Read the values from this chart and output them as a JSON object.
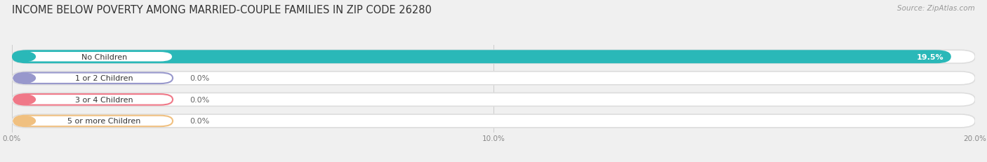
{
  "title": "INCOME BELOW POVERTY AMONG MARRIED-COUPLE FAMILIES IN ZIP CODE 26280",
  "source": "Source: ZipAtlas.com",
  "categories": [
    "No Children",
    "1 or 2 Children",
    "3 or 4 Children",
    "5 or more Children"
  ],
  "values": [
    19.5,
    0.0,
    0.0,
    0.0
  ],
  "bar_colors": [
    "#2ab8b8",
    "#9898cc",
    "#f07888",
    "#f0c080"
  ],
  "xlim": [
    0,
    20.0
  ],
  "xticks": [
    0.0,
    10.0,
    20.0
  ],
  "xtick_labels": [
    "0.0%",
    "10.0%",
    "20.0%"
  ],
  "title_fontsize": 10.5,
  "source_fontsize": 7.5,
  "bar_label_fontsize": 8,
  "value_label_fontsize": 8,
  "tick_fontsize": 7.5,
  "background_color": "#f0f0f0",
  "bar_bg_color": "#ffffff",
  "bar_border_color": "#dddddd",
  "value_label_color": "#666666",
  "label_box_color": "#ffffff",
  "grid_color": "#cccccc"
}
